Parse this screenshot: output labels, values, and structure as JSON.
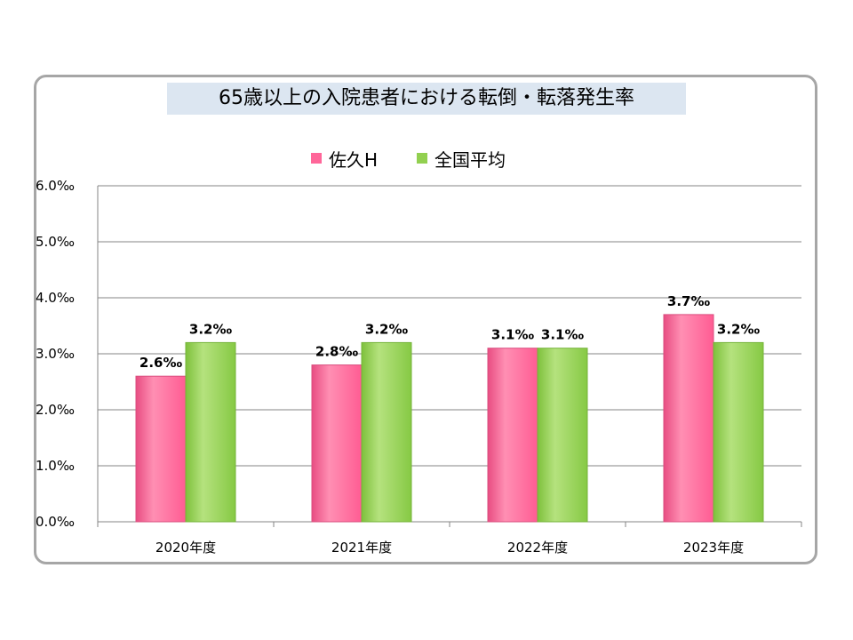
{
  "chart_data": {
    "type": "bar",
    "title": "65歳以上の入院患者における転倒・転落発生率",
    "categories": [
      "2020年度",
      "2021年度",
      "2022年度",
      "2023年度"
    ],
    "series": [
      {
        "name": "佐久H",
        "values": [
          2.6,
          2.8,
          3.1,
          3.7
        ],
        "labels": [
          "2.6‰",
          "2.8‰",
          "3.1‰",
          "3.7‰"
        ],
        "color": "#ff6699"
      },
      {
        "name": "全国平均",
        "values": [
          3.2,
          3.2,
          3.1,
          3.2
        ],
        "labels": [
          "3.2‰",
          "3.2‰",
          "3.1‰",
          "3.2‰"
        ],
        "color": "#92d050"
      }
    ],
    "yticks": [
      "0.0‰",
      "1.0‰",
      "2.0‰",
      "3.0‰",
      "4.0‰",
      "5.0‰",
      "6.0‰"
    ],
    "ylim": [
      0,
      6
    ],
    "grid": true,
    "legend_position": "top"
  }
}
